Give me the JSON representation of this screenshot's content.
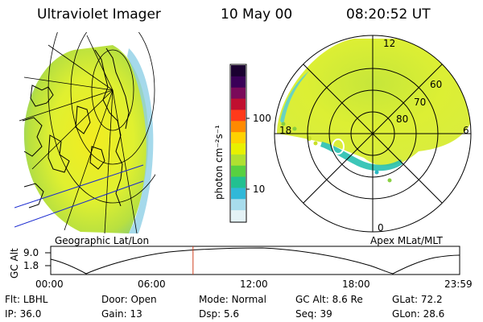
{
  "header": {
    "instrument": "Ultraviolet Imager",
    "date": "10 May 00",
    "time": "08:20:52 UT"
  },
  "colorbar": {
    "unit_label": "photon cm⁻²s⁻¹",
    "ticks": [
      "100",
      "10"
    ],
    "scale": "log",
    "colors": [
      "#1a0030",
      "#3a0058",
      "#7a0a5a",
      "#c01030",
      "#ff3a1a",
      "#ff8a00",
      "#ffd200",
      "#e8f000",
      "#b0e030",
      "#58d040",
      "#22c090",
      "#30b8d8",
      "#a8dcec",
      "#e4f2f6"
    ]
  },
  "left_panel": {
    "caption": "Geographic Lat/Lon"
  },
  "right_panel": {
    "caption": "Apex MLat/MLT",
    "mlt_labels": {
      "top": "12",
      "left": "18",
      "right": "6",
      "bottom": "0"
    },
    "lat_labels": [
      "60",
      "70",
      "80"
    ]
  },
  "altitude_plot": {
    "ylabel": "GC Alt",
    "yticks": [
      "9.0",
      "1.8"
    ],
    "xticks": [
      "00:00",
      "06:00",
      "12:00",
      "18:00",
      "23:59"
    ],
    "marker_time": "08:20:52",
    "marker_color": "#d04020"
  },
  "footer": {
    "row1": [
      {
        "label": "Flt:",
        "value": "LBHL"
      },
      {
        "label": "Door:",
        "value": "Open"
      },
      {
        "label": "Mode:",
        "value": "Normal"
      },
      {
        "label": "GC Alt:",
        "value": "8.6 Re"
      },
      {
        "label": "GLat:",
        "value": "72.2"
      }
    ],
    "row2": [
      {
        "label": "IP:",
        "value": "36.0"
      },
      {
        "label": "Gain:",
        "value": "13"
      },
      {
        "label": "Dsp:",
        "value": "5.6"
      },
      {
        "label": "Seq:",
        "value": "39"
      },
      {
        "label": "GLon:",
        "value": "28.6"
      }
    ]
  }
}
